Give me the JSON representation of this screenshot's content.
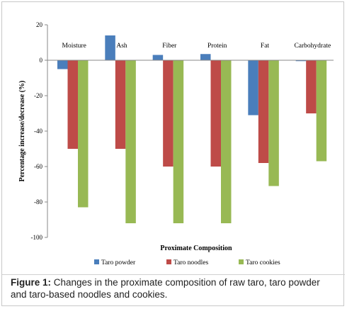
{
  "chart_data": {
    "type": "bar",
    "categories": [
      "Moisture",
      "Ash",
      "Fiber",
      "Protein",
      "Fat",
      "Carbohydrate"
    ],
    "series": [
      {
        "name": "Taro powder",
        "color": "#4a7ebb",
        "values": [
          -5,
          14,
          3,
          3.5,
          -31,
          -0.5
        ]
      },
      {
        "name": "Taro noodles",
        "color": "#be4b48",
        "values": [
          -50,
          -50,
          -60,
          -60,
          -58,
          -30
        ]
      },
      {
        "name": "Taro cookies",
        "color": "#98b954",
        "values": [
          -83,
          -92,
          -92,
          -92,
          -71,
          -57
        ]
      }
    ],
    "ylim": [
      -100,
      20
    ],
    "yticks": [
      20,
      0,
      -20,
      -40,
      -60,
      -80,
      -100
    ],
    "xlabel": "Proximate Composition",
    "ylabel": "Percentage increase/decrease (%)",
    "legend_position": "bottom",
    "grid": false
  },
  "caption": {
    "label": "Figure 1:",
    "text": " Changes in the proximate composition of raw taro, taro powder and taro-based noodles and cookies."
  }
}
